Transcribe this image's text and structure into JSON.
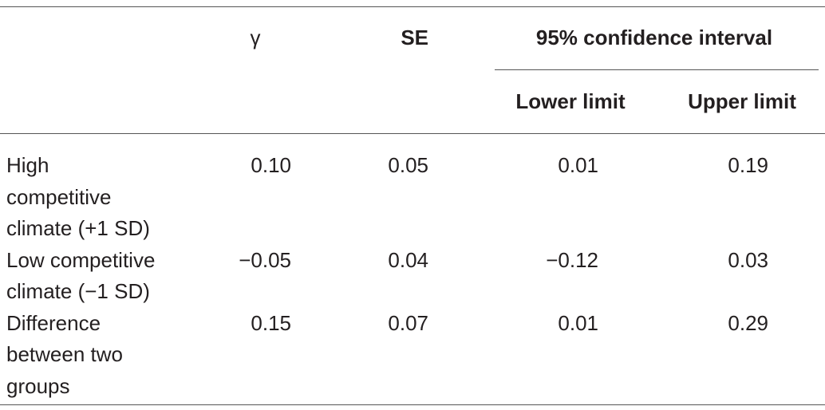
{
  "table": {
    "header": {
      "gamma": "γ",
      "se": "SE",
      "ci": "95% confidence interval",
      "lower": "Lower limit",
      "upper": "Upper limit"
    },
    "rows": [
      {
        "label": [
          "High",
          "competitive",
          "climate (+1 SD)"
        ],
        "cells": [
          "0.10",
          "0.05",
          "0.01",
          "0.19"
        ]
      },
      {
        "label": [
          "Low competitive",
          "climate (−1 SD)"
        ],
        "cells": [
          "−0.05",
          "0.04",
          "−0.12",
          "0.03"
        ]
      },
      {
        "label": [
          "Difference",
          "between two",
          "groups"
        ],
        "cells": [
          "0.15",
          "0.07",
          "0.01",
          "0.29"
        ]
      }
    ]
  }
}
